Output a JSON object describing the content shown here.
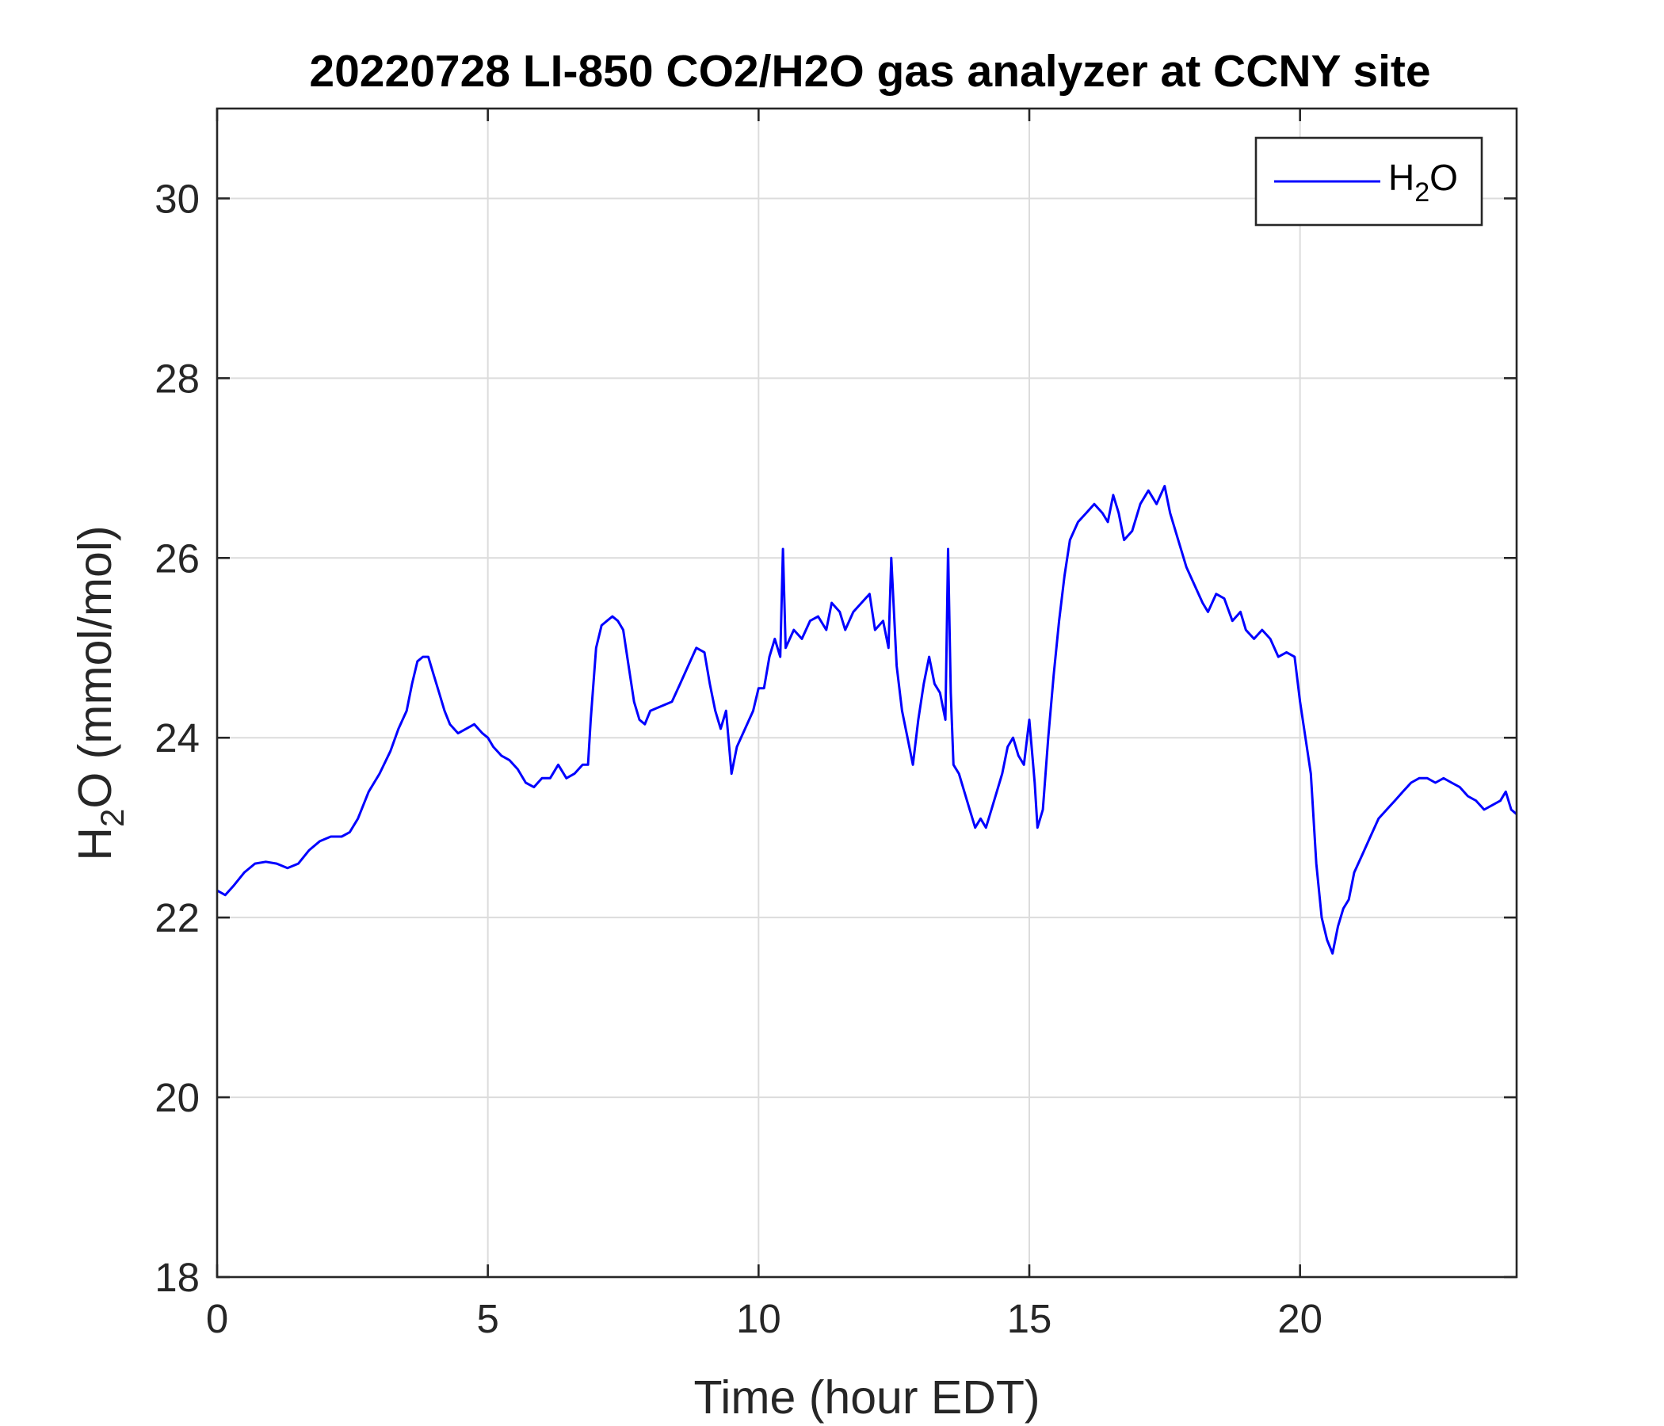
{
  "chart_data": {
    "type": "line",
    "title": "20220728 LI-850 CO2/H2O gas analyzer at CCNY site",
    "xlabel": "Time (hour EDT)",
    "ylabel": {
      "main": "H",
      "sub": "2",
      "rest": "O (mmol/mol)"
    },
    "xlim": [
      0,
      24
    ],
    "ylim": [
      18,
      31
    ],
    "xticks": [
      0,
      5,
      10,
      15,
      20
    ],
    "yticks": [
      18,
      20,
      22,
      24,
      26,
      28,
      30
    ],
    "xtick_labels": [
      "0",
      "5",
      "10",
      "15",
      "20"
    ],
    "ytick_labels": [
      "18",
      "20",
      "22",
      "24",
      "26",
      "28",
      "30"
    ],
    "grid": true,
    "legend": {
      "position": "top-right",
      "entry": {
        "main": "H",
        "sub": "2",
        "rest": "O"
      }
    },
    "series": [
      {
        "name": "H2O",
        "color": "#0000ff",
        "points": [
          [
            0.0,
            22.3
          ],
          [
            0.15,
            22.25
          ],
          [
            0.3,
            22.35
          ],
          [
            0.5,
            22.5
          ],
          [
            0.7,
            22.6
          ],
          [
            0.9,
            22.62
          ],
          [
            1.1,
            22.6
          ],
          [
            1.3,
            22.55
          ],
          [
            1.5,
            22.6
          ],
          [
            1.7,
            22.75
          ],
          [
            1.9,
            22.85
          ],
          [
            2.1,
            22.9
          ],
          [
            2.3,
            22.9
          ],
          [
            2.45,
            22.95
          ],
          [
            2.6,
            23.1
          ],
          [
            2.8,
            23.4
          ],
          [
            3.0,
            23.6
          ],
          [
            3.2,
            23.85
          ],
          [
            3.35,
            24.1
          ],
          [
            3.5,
            24.3
          ],
          [
            3.6,
            24.6
          ],
          [
            3.7,
            24.85
          ],
          [
            3.8,
            24.9
          ],
          [
            3.9,
            24.9
          ],
          [
            4.0,
            24.7
          ],
          [
            4.1,
            24.5
          ],
          [
            4.2,
            24.3
          ],
          [
            4.3,
            24.15
          ],
          [
            4.45,
            24.05
          ],
          [
            4.6,
            24.1
          ],
          [
            4.75,
            24.15
          ],
          [
            4.9,
            24.05
          ],
          [
            5.0,
            24.0
          ],
          [
            5.1,
            23.9
          ],
          [
            5.25,
            23.8
          ],
          [
            5.4,
            23.75
          ],
          [
            5.55,
            23.65
          ],
          [
            5.7,
            23.5
          ],
          [
            5.85,
            23.45
          ],
          [
            6.0,
            23.55
          ],
          [
            6.15,
            23.55
          ],
          [
            6.3,
            23.7
          ],
          [
            6.45,
            23.55
          ],
          [
            6.6,
            23.6
          ],
          [
            6.75,
            23.7
          ],
          [
            6.85,
            23.7
          ],
          [
            6.9,
            24.2
          ],
          [
            7.0,
            25.0
          ],
          [
            7.1,
            25.25
          ],
          [
            7.2,
            25.3
          ],
          [
            7.3,
            25.35
          ],
          [
            7.4,
            25.3
          ],
          [
            7.5,
            25.2
          ],
          [
            7.6,
            24.8
          ],
          [
            7.7,
            24.4
          ],
          [
            7.8,
            24.2
          ],
          [
            7.9,
            24.15
          ],
          [
            8.0,
            24.3
          ],
          [
            8.2,
            24.35
          ],
          [
            8.4,
            24.4
          ],
          [
            8.55,
            24.6
          ],
          [
            8.7,
            24.8
          ],
          [
            8.85,
            25.0
          ],
          [
            9.0,
            24.95
          ],
          [
            9.1,
            24.6
          ],
          [
            9.2,
            24.3
          ],
          [
            9.3,
            24.1
          ],
          [
            9.4,
            24.3
          ],
          [
            9.5,
            23.6
          ],
          [
            9.6,
            23.9
          ],
          [
            9.75,
            24.1
          ],
          [
            9.9,
            24.3
          ],
          [
            10.0,
            24.55
          ],
          [
            10.1,
            24.55
          ],
          [
            10.2,
            24.9
          ],
          [
            10.3,
            25.1
          ],
          [
            10.4,
            24.9
          ],
          [
            10.45,
            26.1
          ],
          [
            10.5,
            25.0
          ],
          [
            10.65,
            25.2
          ],
          [
            10.8,
            25.1
          ],
          [
            10.95,
            25.3
          ],
          [
            11.1,
            25.35
          ],
          [
            11.25,
            25.2
          ],
          [
            11.35,
            25.5
          ],
          [
            11.5,
            25.4
          ],
          [
            11.6,
            25.2
          ],
          [
            11.75,
            25.4
          ],
          [
            11.9,
            25.5
          ],
          [
            12.05,
            25.6
          ],
          [
            12.15,
            25.2
          ],
          [
            12.3,
            25.3
          ],
          [
            12.4,
            25.0
          ],
          [
            12.45,
            26.0
          ],
          [
            12.55,
            24.8
          ],
          [
            12.65,
            24.3
          ],
          [
            12.75,
            24.0
          ],
          [
            12.85,
            23.7
          ],
          [
            12.95,
            24.2
          ],
          [
            13.05,
            24.6
          ],
          [
            13.15,
            24.9
          ],
          [
            13.25,
            24.6
          ],
          [
            13.35,
            24.5
          ],
          [
            13.45,
            24.2
          ],
          [
            13.5,
            26.1
          ],
          [
            13.55,
            24.5
          ],
          [
            13.6,
            23.7
          ],
          [
            13.7,
            23.6
          ],
          [
            13.8,
            23.4
          ],
          [
            13.9,
            23.2
          ],
          [
            14.0,
            23.0
          ],
          [
            14.1,
            23.1
          ],
          [
            14.2,
            23.0
          ],
          [
            14.3,
            23.2
          ],
          [
            14.4,
            23.4
          ],
          [
            14.5,
            23.6
          ],
          [
            14.6,
            23.9
          ],
          [
            14.7,
            24.0
          ],
          [
            14.8,
            23.8
          ],
          [
            14.9,
            23.7
          ],
          [
            15.0,
            24.2
          ],
          [
            15.1,
            23.5
          ],
          [
            15.15,
            23.0
          ],
          [
            15.25,
            23.2
          ],
          [
            15.35,
            24.0
          ],
          [
            15.45,
            24.7
          ],
          [
            15.55,
            25.3
          ],
          [
            15.65,
            25.8
          ],
          [
            15.75,
            26.2
          ],
          [
            15.9,
            26.4
          ],
          [
            16.05,
            26.5
          ],
          [
            16.2,
            26.6
          ],
          [
            16.35,
            26.5
          ],
          [
            16.45,
            26.4
          ],
          [
            16.55,
            26.7
          ],
          [
            16.65,
            26.5
          ],
          [
            16.75,
            26.2
          ],
          [
            16.9,
            26.3
          ],
          [
            17.05,
            26.6
          ],
          [
            17.2,
            26.75
          ],
          [
            17.35,
            26.6
          ],
          [
            17.5,
            26.8
          ],
          [
            17.6,
            26.5
          ],
          [
            17.75,
            26.2
          ],
          [
            17.9,
            25.9
          ],
          [
            18.05,
            25.7
          ],
          [
            18.2,
            25.5
          ],
          [
            18.3,
            25.4
          ],
          [
            18.45,
            25.6
          ],
          [
            18.6,
            25.55
          ],
          [
            18.75,
            25.3
          ],
          [
            18.9,
            25.4
          ],
          [
            19.0,
            25.2
          ],
          [
            19.15,
            25.1
          ],
          [
            19.3,
            25.2
          ],
          [
            19.45,
            25.1
          ],
          [
            19.6,
            24.9
          ],
          [
            19.75,
            24.95
          ],
          [
            19.9,
            24.9
          ],
          [
            20.0,
            24.4
          ],
          [
            20.1,
            24.0
          ],
          [
            20.2,
            23.6
          ],
          [
            20.3,
            22.6
          ],
          [
            20.4,
            22.0
          ],
          [
            20.5,
            21.75
          ],
          [
            20.6,
            21.6
          ],
          [
            20.7,
            21.9
          ],
          [
            20.8,
            22.1
          ],
          [
            20.9,
            22.2
          ],
          [
            21.0,
            22.5
          ],
          [
            21.15,
            22.7
          ],
          [
            21.3,
            22.9
          ],
          [
            21.45,
            23.1
          ],
          [
            21.6,
            23.2
          ],
          [
            21.75,
            23.3
          ],
          [
            21.9,
            23.4
          ],
          [
            22.05,
            23.5
          ],
          [
            22.2,
            23.55
          ],
          [
            22.35,
            23.55
          ],
          [
            22.5,
            23.5
          ],
          [
            22.65,
            23.55
          ],
          [
            22.8,
            23.5
          ],
          [
            22.95,
            23.45
          ],
          [
            23.1,
            23.35
          ],
          [
            23.25,
            23.3
          ],
          [
            23.4,
            23.2
          ],
          [
            23.55,
            23.25
          ],
          [
            23.7,
            23.3
          ],
          [
            23.8,
            23.4
          ],
          [
            23.9,
            23.2
          ],
          [
            24.0,
            23.15
          ]
        ]
      }
    ]
  }
}
